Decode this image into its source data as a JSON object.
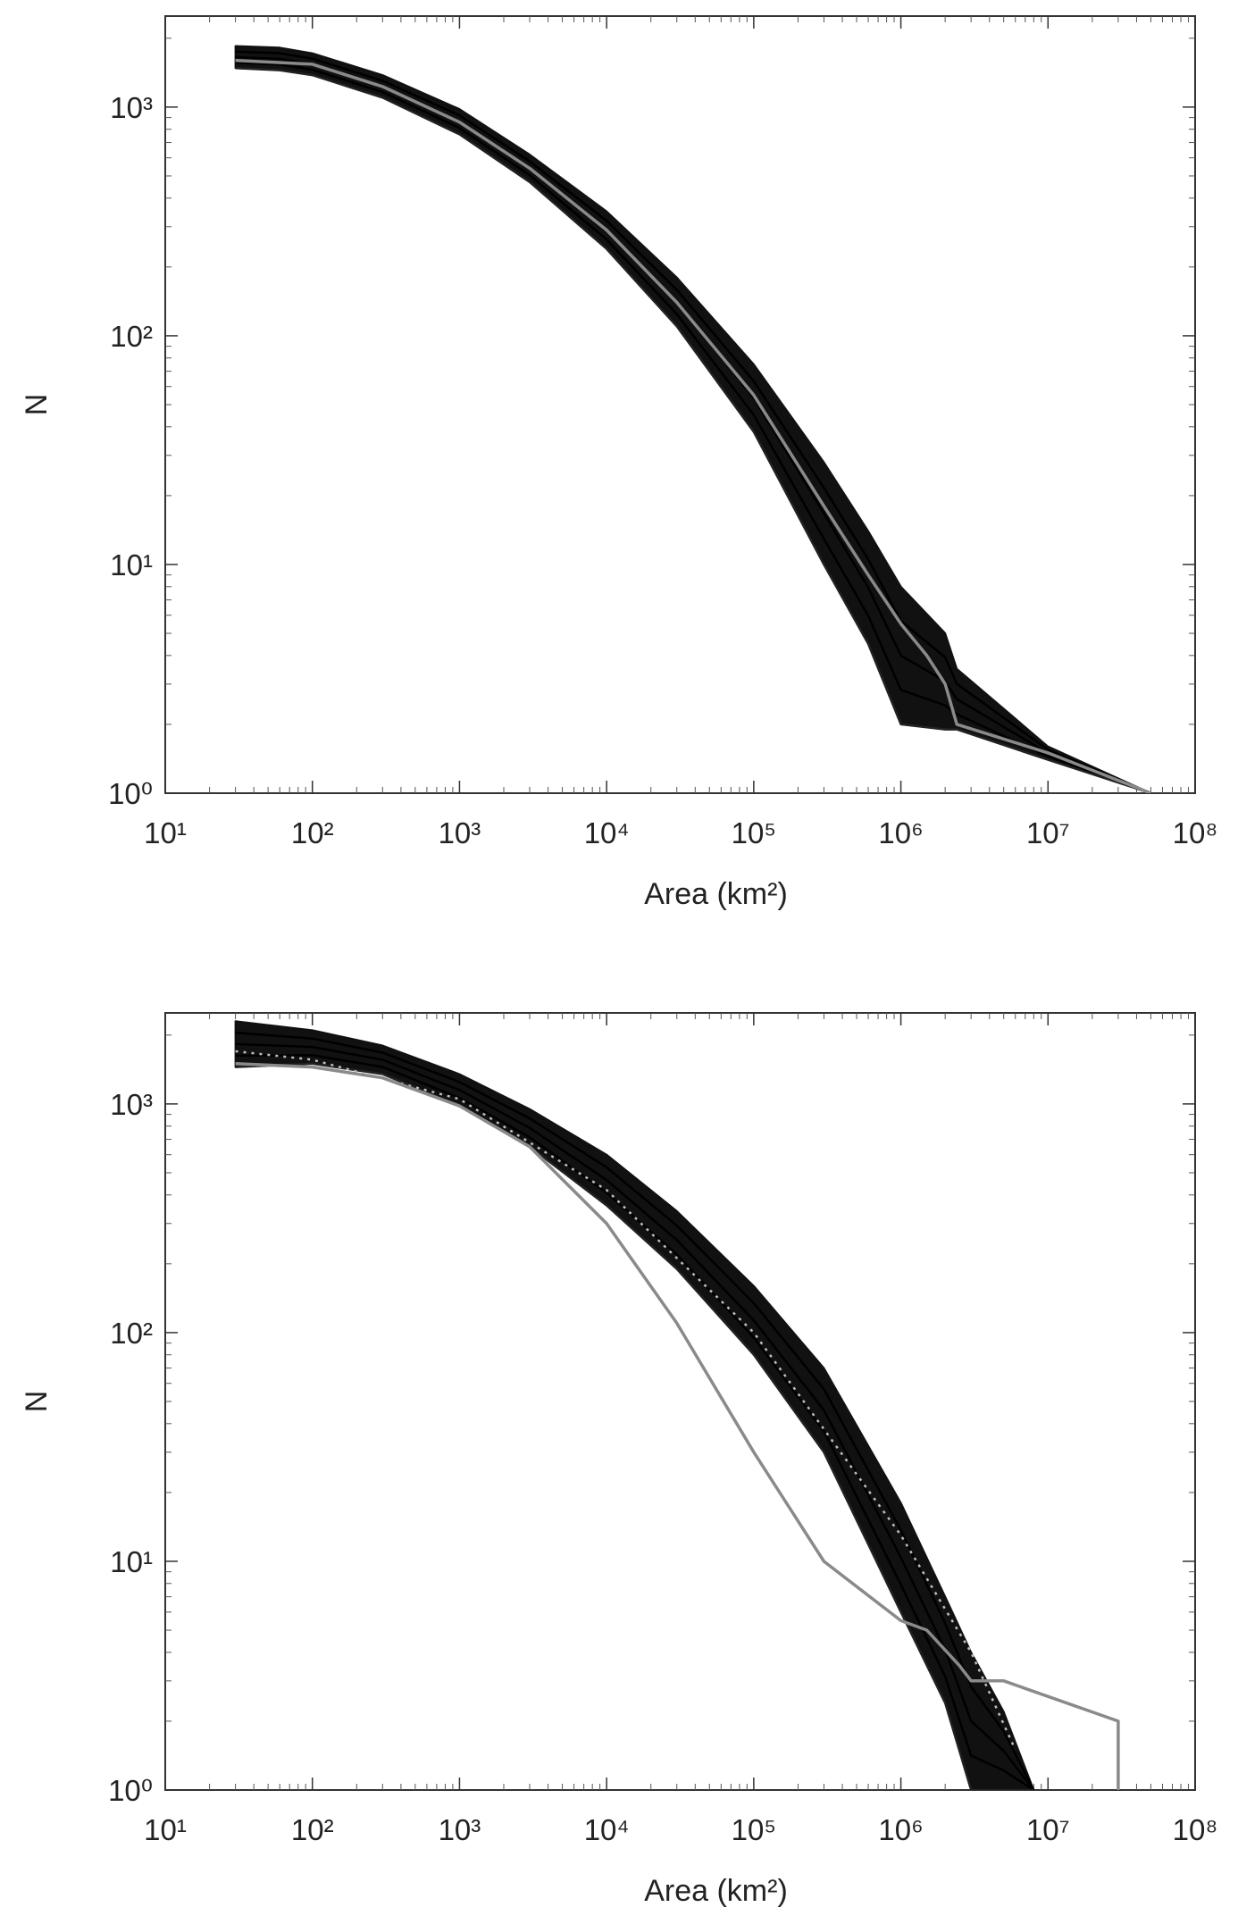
{
  "chart_data": [
    {
      "type": "line",
      "title": "",
      "xlabel": "Area (km²)",
      "ylabel": "N",
      "xscale": "log",
      "yscale": "log",
      "xlim": [
        10,
        100000000
      ],
      "ylim": [
        1,
        2500
      ],
      "grid": false,
      "legend": "none",
      "x_tick_labels": [
        "10¹",
        "10²",
        "10³",
        "10⁴",
        "10⁵",
        "10⁶",
        "10⁷",
        "10⁸"
      ],
      "y_tick_labels": [
        "10⁰",
        "10¹",
        "10²",
        "10³"
      ],
      "colors": {
        "ensemble": "#111111",
        "reference": "#8a8a8a"
      },
      "series": [
        {
          "role": "ensemble-band",
          "x": [
            30,
            60,
            100,
            300,
            1000,
            3000,
            10000,
            30000,
            100000,
            300000,
            600000,
            1000000,
            2000000,
            2400000,
            10000000,
            50000000
          ],
          "y_upper": [
            1850,
            1820,
            1720,
            1380,
            980,
            620,
            350,
            180,
            75,
            28,
            14,
            8,
            5,
            3.5,
            1.6,
            1
          ],
          "y_lower": [
            1480,
            1450,
            1380,
            1100,
            760,
            470,
            240,
            110,
            38,
            10,
            4.5,
            2,
            1.9,
            1.9,
            1.4,
            1
          ]
        },
        {
          "role": "reference",
          "x": [
            30,
            100,
            300,
            1000,
            3000,
            10000,
            30000,
            100000,
            300000,
            600000,
            1000000,
            1500000,
            2000000,
            2400000,
            10000000,
            50000000
          ],
          "y": [
            1600,
            1540,
            1230,
            860,
            540,
            290,
            140,
            55,
            18,
            9,
            5.5,
            4,
            3,
            2,
            1.5,
            1
          ]
        }
      ]
    },
    {
      "type": "line",
      "title": "",
      "xlabel": "Area (km²)",
      "ylabel": "N",
      "xscale": "log",
      "yscale": "log",
      "xlim": [
        10,
        100000000
      ],
      "ylim": [
        1,
        2500
      ],
      "grid": false,
      "legend": "none",
      "x_tick_labels": [
        "10¹",
        "10²",
        "10³",
        "10⁴",
        "10⁵",
        "10⁶",
        "10⁷",
        "10⁸"
      ],
      "y_tick_labels": [
        "10⁰",
        "10¹",
        "10²",
        "10³"
      ],
      "colors": {
        "ensemble": "#111111",
        "reference": "#8a8a8a"
      },
      "series": [
        {
          "role": "ensemble-band",
          "x": [
            30,
            100,
            300,
            1000,
            3000,
            10000,
            30000,
            100000,
            300000,
            1000000,
            2000000,
            3000000,
            5000000,
            8000000
          ],
          "y_upper": [
            2300,
            2100,
            1800,
            1350,
            950,
            600,
            340,
            160,
            70,
            18,
            7,
            4,
            2.2,
            1
          ],
          "y_lower": [
            1450,
            1500,
            1350,
            980,
            650,
            360,
            190,
            80,
            30,
            6,
            2.4,
            1,
            1,
            1
          ]
        },
        {
          "role": "dotted-mean",
          "x": [
            30,
            100,
            1000,
            10000,
            100000,
            1000000,
            3000000,
            6000000
          ],
          "y": [
            1700,
            1560,
            1050,
            420,
            100,
            13,
            4,
            1.5
          ]
        },
        {
          "role": "reference",
          "x": [
            30,
            100,
            300,
            1000,
            3000,
            10000,
            30000,
            100000,
            300000,
            1000000,
            1500000,
            2500000,
            3000000,
            5000000,
            30000000,
            30000000
          ],
          "y": [
            1500,
            1450,
            1300,
            980,
            650,
            300,
            110,
            30,
            10,
            5.5,
            5,
            3.5,
            3,
            3,
            2,
            1
          ]
        }
      ]
    }
  ]
}
